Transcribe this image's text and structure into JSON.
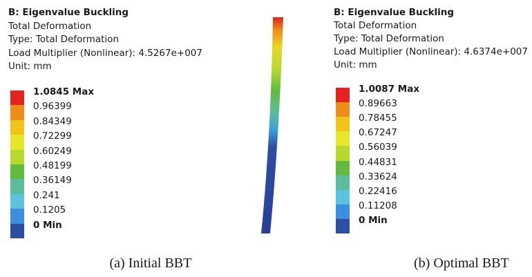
{
  "panels": [
    {
      "header": [
        "B: Eigenvalue Buckling",
        "Total Deformation",
        "Type: Total Deformation",
        "Load Multiplier (Nonlinear): 4.5267e+007",
        "Unit: mm"
      ],
      "legend": [
        "1.0845 Max",
        "0.96399",
        "0.84349",
        "0.72299",
        "0.60249",
        "0.48199",
        "0.36149",
        "0.241",
        "0.1205",
        "0 Min"
      ],
      "caption": "(a) Initial BBT"
    },
    {
      "header": [
        "B: Eigenvalue Buckling",
        "Total Deformation",
        "Type: Total Deformation",
        "Load Multiplier (Nonlinear): 4.6374e+007",
        "Unit: mm"
      ],
      "legend": [
        "1.0087 Max",
        "0.89663",
        "0.78455",
        "0.67247",
        "0.56039",
        "0.44831",
        "0.33624",
        "0.22416",
        "0.11208",
        "0 Min"
      ],
      "caption": "(b) Optimal BBT"
    }
  ]
}
